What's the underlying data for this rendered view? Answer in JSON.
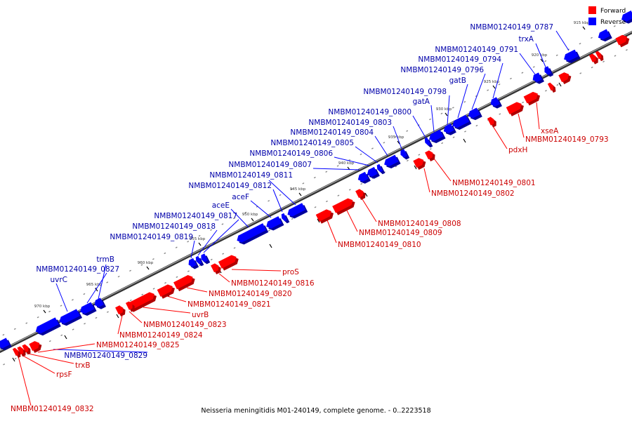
{
  "caption": "Neisseria meningitidis M01-240149, complete genome. - 0..2223518",
  "legend": {
    "forward": {
      "label": "Forward",
      "color": "#ff0000"
    },
    "reverse": {
      "label": "Reverse",
      "color": "#0000ff"
    }
  },
  "colors": {
    "forward": "#ff0000",
    "forward_dark": "#b00000",
    "reverse": "#0000ff",
    "reverse_dark": "#00009a",
    "backbone": "#555555",
    "forward_label": "#cc0000",
    "reverse_label": "#0000aa"
  },
  "ticks": [
    "915 kbp",
    "920 kbp",
    "925 kbp",
    "930 kbp",
    "935 kbp",
    "940 kbp",
    "945 kbp",
    "950 kbp",
    "955 kbp",
    "960 kbp",
    "965 kbp",
    "970 kbp"
  ],
  "reverse_labels": [
    "NMBM01240149_0787",
    "trxA",
    "NMBM01240149_0791",
    "NMBM01240149_0794",
    "NMBM01240149_0796",
    "gatB",
    "NMBM01240149_0798",
    "gatA",
    "NMBM01240149_0800",
    "NMBM01240149_0803",
    "NMBM01240149_0804",
    "NMBM01240149_0805",
    "NMBM01240149_0806",
    "NMBM01240149_0807",
    "NMBM01240149_0811",
    "NMBM01240149_0812",
    "aceF",
    "aceE",
    "NMBM01240149_0817",
    "NMBM01240149_0818",
    "NMBM01240149_0819",
    "trmB",
    "NMBM01240149_0827",
    "uvrC",
    "NMBM01240149_0829"
  ],
  "forward_labels": [
    "xseA",
    "NMBM01240149_0793",
    "pdxH",
    "NMBM01240149_0801",
    "NMBM01240149_0802",
    "NMBM01240149_0808",
    "NMBM01240149_0809",
    "NMBM01240149_0810",
    "proS",
    "NMBM01240149_0816",
    "NMBM01240149_0820",
    "NMBM01240149_0821",
    "uvrB",
    "NMBM01240149_0823",
    "NMBM01240149_0824",
    "NMBM01240149_0825",
    "trxB",
    "rpsF",
    "NMBM01240149_0832"
  ]
}
